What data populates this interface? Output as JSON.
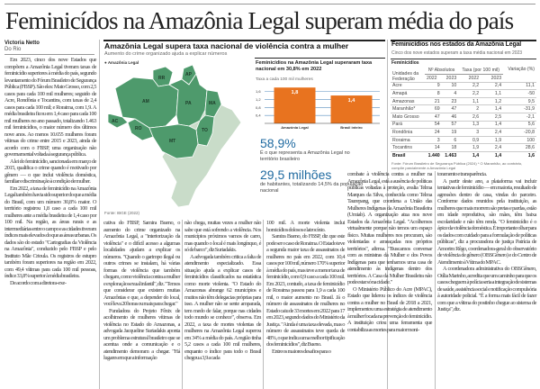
{
  "headline": "Feminicídos na Amazônia Legal superam média do país",
  "byline": {
    "author": "Victoria Netto",
    "location": "Do Rio"
  },
  "map_section": {
    "title": "Amazônia Legal supera taxa nacional de violência contra a mulher",
    "subtitle": "Aumento do crime organizado ajuda a explicar números",
    "legend": "Amazônia Legal",
    "source": "Fonte: IBGE (2022)",
    "states": [
      "RR",
      "AP",
      "AM",
      "PA",
      "MA",
      "AC",
      "RO",
      "MT",
      "TO"
    ],
    "colors": {
      "amazonia": "#4e9a6c",
      "rest": "#c9dcc9"
    }
  },
  "chart_data": {
    "type": "bar",
    "title": "Feminicídios na Amazônia Legal superaram taxa nacional em 30,8% em 2022",
    "ylabel": "Taxa a cada 100 mil mulheres",
    "categories": [
      "Amazônia Legal",
      "Brasil inteiro"
    ],
    "values": [
      1.8,
      1.4
    ],
    "value_labels": [
      "1,8",
      "1,4"
    ],
    "yticks": [
      "0,4",
      "0,8",
      "1,2",
      "1,6"
    ],
    "ytick_values": [
      0.4,
      0.8,
      1.2,
      1.6
    ],
    "ylim": [
      0,
      1.9
    ],
    "color": "#e8731f",
    "grid": true
  },
  "stats": [
    {
      "value": "58,9%",
      "desc": "É o que representa a Amazônia Legal no território brasileiro"
    },
    {
      "value": "29,5 milhões",
      "desc": "de habitantes, totalizando 14,5% da população nacional"
    }
  ],
  "table_section": {
    "title": "Feminicídios nos estados da Amazônia Legal",
    "subtitle": "Cinco dos nove estados superam a taxa média nacional em 2023",
    "group_label": "Feminicídios",
    "headers": {
      "unit": "Unidades da Federação",
      "abs": "Nº Absolutos",
      "rate": "Taxa (por 100 mil)",
      "var": "Variação (%)",
      "y1": "2022",
      "y2": "2023"
    },
    "rows": [
      [
        "Acre",
        "9",
        "10",
        "2,2",
        "2,4",
        "11,1"
      ],
      [
        "Amapá",
        "8",
        "4",
        "2,2",
        "1,1",
        "-50"
      ],
      [
        "Amazonas",
        "21",
        "23",
        "1,1",
        "1,2",
        "9,5"
      ],
      [
        "Maranhão*",
        "69",
        "47",
        "2",
        "1,4",
        "-31,9"
      ],
      [
        "Mato Grosso",
        "47",
        "46",
        "2,6",
        "2,5",
        "-2,1"
      ],
      [
        "Pará",
        "54",
        "57",
        "1,3",
        "1,4",
        "5,6"
      ],
      [
        "Rondônia",
        "24",
        "19",
        "3",
        "2,4",
        "-20,8"
      ],
      [
        "Roraima",
        "3",
        "6",
        "0,9",
        "1,9",
        "100"
      ],
      [
        "Tocantins",
        "14",
        "18",
        "1,9",
        "2,4",
        "28,6"
      ]
    ],
    "total": [
      "Brasil",
      "1.440",
      "1.463",
      "1,4",
      "1,4",
      "1,6"
    ],
    "source": "Fonte: Fórum Brasileiro de Segurança Pública (2024) * O Maranhão, ao contrário, compõe parcialmente a Amazônia Legal"
  },
  "columns": [
    [
      "Em 2023, cinco dos nove Estados que compõem a Amazônia Legal tiveram taxas de feminicídio superiores à média do país, segundo levantamento do Fórum Brasileiro de Segurança Pública (FBSP). São eles: Mato Grosso, com 2,5 casos para cada 100 mil mulheres; seguido de Acre, Rondônia e Tocantins, com taxas de 2,4 casos para cada 100 mil; e Roraima, com 1,9. A média brasileira ficou em 1,4 caso para cada 100 mil mulheres no ano passado, totalizando 1.463 mil feminicídios, o maior número dos últimos nove anos. Ao menos 10.655 mulheres foram vítimas do crime entre 2015 e 2023, ainda de acordo com o FBSP, uma organização não governamental voltada à segurança pública.",
      "A lei do feminicídio, sancionada em março de 2015, qualifica o crime quando é motivado por gênero — o que inclui violência doméstica, familiar e discriminação à condição de mulher.",
      "Em 2022, a taxa de feminicídio na Amazônia Legal também havia sido superior do que a média do Brasil, com um número 30,8% maior. O território registrou 1,8 caso a cada 100 mil mulheres ante a média brasileira de 1,4 caso por 100 mil. Na região, as áreas rurais e as intermediárias entre o campo e as cidades tiveram índices mais elevados do que as áreas urbanas. Os dados são do estudo \"Cartografias da Violência na Amazônia\", conduzido pelo FBSP e pelo Instituto Mãe Crioula. Os registros de estupro também foram superiores na região em 2022, com 49,4 vítimas para cada 100 mil pessoas, índice 33,8% superior à média brasileira.",
      "De acordo com a diretora-exe-"
    ],
    [
      "cutiva do FBSP, Samira Bueno, o aumento do crime organizado na Amazônia Legal, a \"interiorização da violência\" e o difícil acesso a algumas localidades ajudam a explicar os números. \"Quando o garimpo ilegal ou outros crimes se instalam, há várias formas de violência que também chegam, como violência contra a mulher e exploração sexual infantil\", diz. \"Temos que considerar que existem muitas Amazônias e que, a depender do local, você leva 20 horas ou mais para chegar.\"",
      "Fundadora do Projeto Fênix de acolhimento de mulheres vítimas de violência no Estado do Amazonas, a advogada Jacqueline Suriadakis aponta um problema estrutural brasileiro que se acentua onde a comunicação e o atendimento demoram a chegar. \"Há lugares em que a informação"
    ],
    [
      "não chega, muitas vezes a mulher não sabe que está sofrendo a violência. Nos municípios próximos vamos de carro, mas quando o local é mais longínquo, é só de barco\", diz Suriadakis.",
      "A advogada também critica a falta de atendimento especializado. Essa situação ajuda a explicar casos de feminicídios classificados na estatística como morte violenta. \"O Estado do Amazonas abrange 62 municípios e muitos não têm delegacias próprias para isso. A mulher não se sente amparada, tem medo de falar, porque nas cidades todo mundo se conhece\", observa. Em 2022, a taxa de mortes violentas de mulheres na Amazônia Legal superou em 34% a média do país. A região tinha 5,2 casos a cada 100 mil mulheres, enquanto o índice para todo o Brasil chegou a 3,9 a cada"
    ],
    [
      "100 mil. A morte violenta inclui homicídios dolosos e latrocínio.",
      "Samira Bueno, do FBSP, diz que este pode ser o caso de Roraima. O Estado teve a segunda maior taxa de assassinatos de mulheres no país em 2022, com 10,4 casos por 100 mil, número 170% superior à média do país, mas teve a menor taxa de feminicídio, com 0,9 caso a cada 100 mil. Em 2023, contudo, a taxa de feminicídio de Roraima passou para 1,9 a cada 100 mil, o maior aumento no Brasil. Já o número de assassinatos de mulheres no Estado caiu de 33 mortes em 2022 para 17 em 2023, segundo dados do Ministério da Justiça. \"Ainda é uma taxa elevada, mas o número de assassinatos teve queda de 48%, o que indica uma melhor tipificação dos feminicídios\", diz Bueno.",
      "Entre os maiores desafios para o"
    ],
    [
      "combate à violência contra a mulher na Amazônia Legal, está a ausência de políticas públicas voltadas à proteção, avalia Telma Marques da Silva, conhecida como Telma Taurepang, que coordena a União das Mulheres Indígenas da Amazônia Brasileira (Umiab). A organização atua nos nove Estados da Amazônia Legal. \"Acolhemos virtualmente porque não temos um espaço físico. Muitas mulheres nos procuram, são violentadas e ameaçadas nos próprios territórios\", afirma. \"Buscamos conversar com as ministras da Mulher e dos Povos Indígenas para que tenhamos uma casa de atendimento às indígenas dentro dos territórios. A Casa da Mulher Brasileira não pode estar só na cidade.\"",
      "O Ministério Público do Acre (MPAC), Estado que liderou os índices de violência contra a mulher no Brasil de 2018 a 2021, implementou uma estratégia de atendimento à mulher focada na prevenção do feminicídio. A instituição criou uma ferramenta que contabiliza as mortes para maior moni-"
    ],
    [
      "toramento e transparência.",
      "A partir deste ano, a plataforma vai incluir tentativas de feminicídio — em maioria, resultado de agressões dentro de casa, vindas do parceiro. Conforme dados reunidos pela instituição, as mulheres que mais morrem são pretas e pardas, estão em idade reprodutiva, são mães, têm baixa escolaridade e não têm renda. \"O feminicídio é o ápice da violência doméstica. É importante olhar para os dados com cuidado para a formulação de políticas públicas\", diz a procuradora de justiça Patrícia de Amorim Rêgo, coordenadora-geral do observatório de violência de gênero (OBSGênero) e do Centro de Atendimento à Vítima do MPAC.",
      "A coordenadora administrativa do OBSGênero, Otília Marinho, acredita que um caminho para que os casos cheguem à polícia seria a integração de sistemas de saúde, assistência social e notificação compulsória à autoridade policial. \"É a forma mais fácil de fazer com que a vítima do postinho chegue ao sistema de Justiça\", diz."
    ]
  ]
}
